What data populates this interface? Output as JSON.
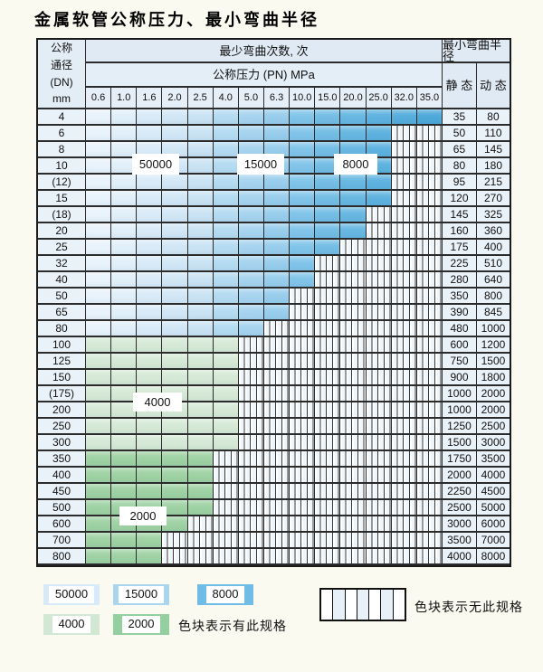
{
  "title": "金属软管公称压力、最小弯曲半径",
  "table": {
    "header": {
      "dn_lines": [
        "公称",
        "通径",
        "(DN)",
        "mm"
      ],
      "cycles_header": "最少弯曲次数, 次",
      "pressure_header": "公称压力 (PN) MPa",
      "radius_header": "最小弯曲半径",
      "static_label": "静 态",
      "dynamic_label": "动 态",
      "pressures": [
        "0.6",
        "1.0",
        "1.6",
        "2.0",
        "2.5",
        "4.0",
        "5.0",
        "6.3",
        "10.0",
        "15.0",
        "20.0",
        "25.0",
        "32.0",
        "35.0"
      ]
    },
    "rows": [
      {
        "dn": "4",
        "colored_cols": 14,
        "static": "35",
        "dynamic": "80"
      },
      {
        "dn": "6",
        "colored_cols": 12,
        "static": "50",
        "dynamic": "110"
      },
      {
        "dn": "8",
        "colored_cols": 12,
        "static": "65",
        "dynamic": "145"
      },
      {
        "dn": "10",
        "colored_cols": 12,
        "static": "80",
        "dynamic": "180"
      },
      {
        "dn": "(12)",
        "colored_cols": 12,
        "static": "95",
        "dynamic": "215"
      },
      {
        "dn": "15",
        "colored_cols": 12,
        "static": "120",
        "dynamic": "270"
      },
      {
        "dn": "(18)",
        "colored_cols": 11,
        "static": "145",
        "dynamic": "325"
      },
      {
        "dn": "20",
        "colored_cols": 11,
        "static": "160",
        "dynamic": "360"
      },
      {
        "dn": "25",
        "colored_cols": 10,
        "static": "175",
        "dynamic": "400"
      },
      {
        "dn": "32",
        "colored_cols": 9,
        "static": "225",
        "dynamic": "510"
      },
      {
        "dn": "40",
        "colored_cols": 9,
        "static": "280",
        "dynamic": "640"
      },
      {
        "dn": "50",
        "colored_cols": 8,
        "static": "350",
        "dynamic": "800"
      },
      {
        "dn": "65",
        "colored_cols": 8,
        "static": "390",
        "dynamic": "845"
      },
      {
        "dn": "80",
        "colored_cols": 7,
        "static": "480",
        "dynamic": "1000"
      },
      {
        "dn": "100",
        "colored_cols": 6,
        "static": "600",
        "dynamic": "1200"
      },
      {
        "dn": "125",
        "colored_cols": 6,
        "static": "750",
        "dynamic": "1500"
      },
      {
        "dn": "150",
        "colored_cols": 6,
        "static": "900",
        "dynamic": "1800"
      },
      {
        "dn": "(175)",
        "colored_cols": 6,
        "static": "1000",
        "dynamic": "2000"
      },
      {
        "dn": "200",
        "colored_cols": 6,
        "static": "1000",
        "dynamic": "2000"
      },
      {
        "dn": "250",
        "colored_cols": 6,
        "static": "1250",
        "dynamic": "2500"
      },
      {
        "dn": "300",
        "colored_cols": 6,
        "static": "1500",
        "dynamic": "3000"
      },
      {
        "dn": "350",
        "colored_cols": 5,
        "static": "1750",
        "dynamic": "3500"
      },
      {
        "dn": "400",
        "colored_cols": 5,
        "static": "2000",
        "dynamic": "4000"
      },
      {
        "dn": "450",
        "colored_cols": 5,
        "static": "2250",
        "dynamic": "4500"
      },
      {
        "dn": "500",
        "colored_cols": 5,
        "static": "2500",
        "dynamic": "5000"
      },
      {
        "dn": "600",
        "colored_cols": 4,
        "static": "3000",
        "dynamic": "6000"
      },
      {
        "dn": "700",
        "colored_cols": 3,
        "static": "3500",
        "dynamic": "7000"
      },
      {
        "dn": "800",
        "colored_cols": 3,
        "static": "4000",
        "dynamic": "8000"
      }
    ],
    "zones": {
      "blue_column_colors": [
        "#e9f3fb",
        "#e1effa",
        "#d9ebf8",
        "#d1e7f6",
        "#c9e3f4",
        "#b4dbf2",
        "#a6d4ef",
        "#97cdec",
        "#81c4e9",
        "#73bde5",
        "#67b7e2",
        "#5db2df",
        "#55addc",
        "#4da8d9"
      ],
      "green_light": "#d5e9d6",
      "green_dark": "#9ed2a3",
      "green_light_rows": [
        14,
        20
      ],
      "green_dark_rows": [
        21,
        27
      ]
    },
    "cycle_zone_labels": [
      {
        "text": "50000",
        "cycles": 50000,
        "applies": "DN4-80, PN 0.6-2.5"
      },
      {
        "text": "15000",
        "cycles": 15000,
        "applies": "DN4-80, PN 4.0-6.3"
      },
      {
        "text": "8000",
        "cycles": 8000,
        "applies": "DN4-80, PN 10.0-35.0"
      },
      {
        "text": "4000",
        "cycles": 4000,
        "applies": "DN100-300"
      },
      {
        "text": "2000",
        "cycles": 2000,
        "applies": "DN350-800"
      }
    ]
  },
  "legend": {
    "items": [
      {
        "label": "50000",
        "color": "#d6ebf7"
      },
      {
        "label": "15000",
        "color": "#a9d6ee"
      },
      {
        "label": "8000",
        "color": "#6fbde6"
      },
      {
        "label": "4000",
        "color": "#d2e8d4"
      },
      {
        "label": "2000",
        "color": "#93cf9f"
      }
    ],
    "has_spec_text": "色块表示有此规格",
    "no_spec_text": "色块表示无此规格"
  }
}
